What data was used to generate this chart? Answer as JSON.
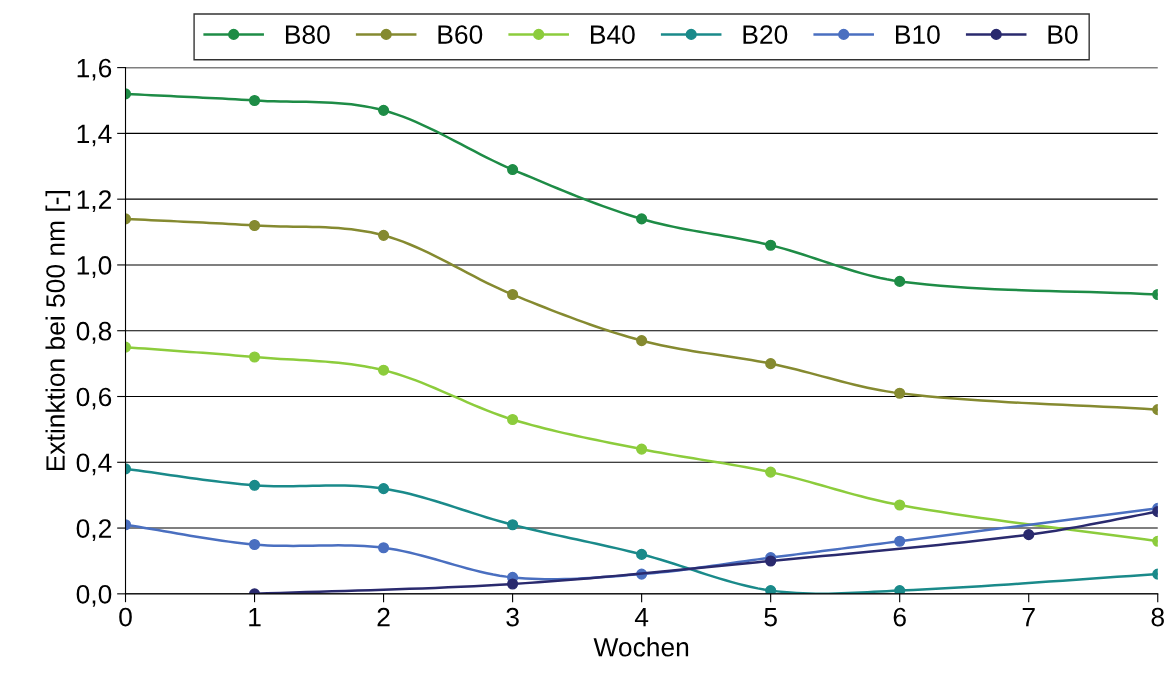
{
  "chart_data": {
    "type": "line",
    "xlabel": "Wochen",
    "ylabel": "Extinktion bei 500 nm [-]",
    "x": [
      0,
      1,
      2,
      3,
      4,
      5,
      6,
      8
    ],
    "xlim": [
      0,
      8
    ],
    "xticks": [
      0,
      1,
      2,
      3,
      4,
      5,
      6,
      7,
      8
    ],
    "ylim": [
      0,
      1.6
    ],
    "yticks": [
      {
        "value": 0,
        "label": "0,0"
      },
      {
        "value": 0.2,
        "label": "0,2"
      },
      {
        "value": 0.4,
        "label": "0,4"
      },
      {
        "value": 0.6,
        "label": "0,6"
      },
      {
        "value": 0.8,
        "label": "0,8"
      },
      {
        "value": 1.0,
        "label": "1,0"
      },
      {
        "value": 1.2,
        "label": "1,2"
      },
      {
        "value": 1.4,
        "label": "1,4"
      },
      {
        "value": 1.6,
        "label": "1,6"
      }
    ],
    "grid": "y",
    "legend": "top",
    "marker": "circle",
    "line_style": "solid",
    "series": [
      {
        "name": "B80",
        "color": "#1e8c46",
        "values": [
          1.52,
          1.5,
          1.47,
          1.29,
          1.14,
          1.06,
          0.95,
          0.91
        ]
      },
      {
        "name": "B60",
        "color": "#858a30",
        "values": [
          1.14,
          1.12,
          1.09,
          0.91,
          0.77,
          0.7,
          0.61,
          0.56
        ]
      },
      {
        "name": "B40",
        "color": "#8ccc3c",
        "values": [
          0.75,
          0.72,
          0.68,
          0.53,
          0.44,
          0.37,
          0.27,
          0.16
        ]
      },
      {
        "name": "B20",
        "color": "#1a8a8a",
        "values": [
          0.38,
          0.33,
          0.32,
          0.21,
          0.12,
          0.01,
          0.01,
          0.06
        ]
      },
      {
        "name": "B10",
        "color": "#4a6fc0",
        "values": [
          0.21,
          0.15,
          0.14,
          0.05,
          0.06,
          0.11,
          0.16,
          0.26
        ]
      },
      {
        "name": "B0",
        "color": "#2a2a6e",
        "x": [
          1,
          3,
          5,
          7,
          8
        ],
        "values": [
          0.0,
          0.03,
          0.1,
          0.18,
          0.25
        ]
      }
    ]
  }
}
